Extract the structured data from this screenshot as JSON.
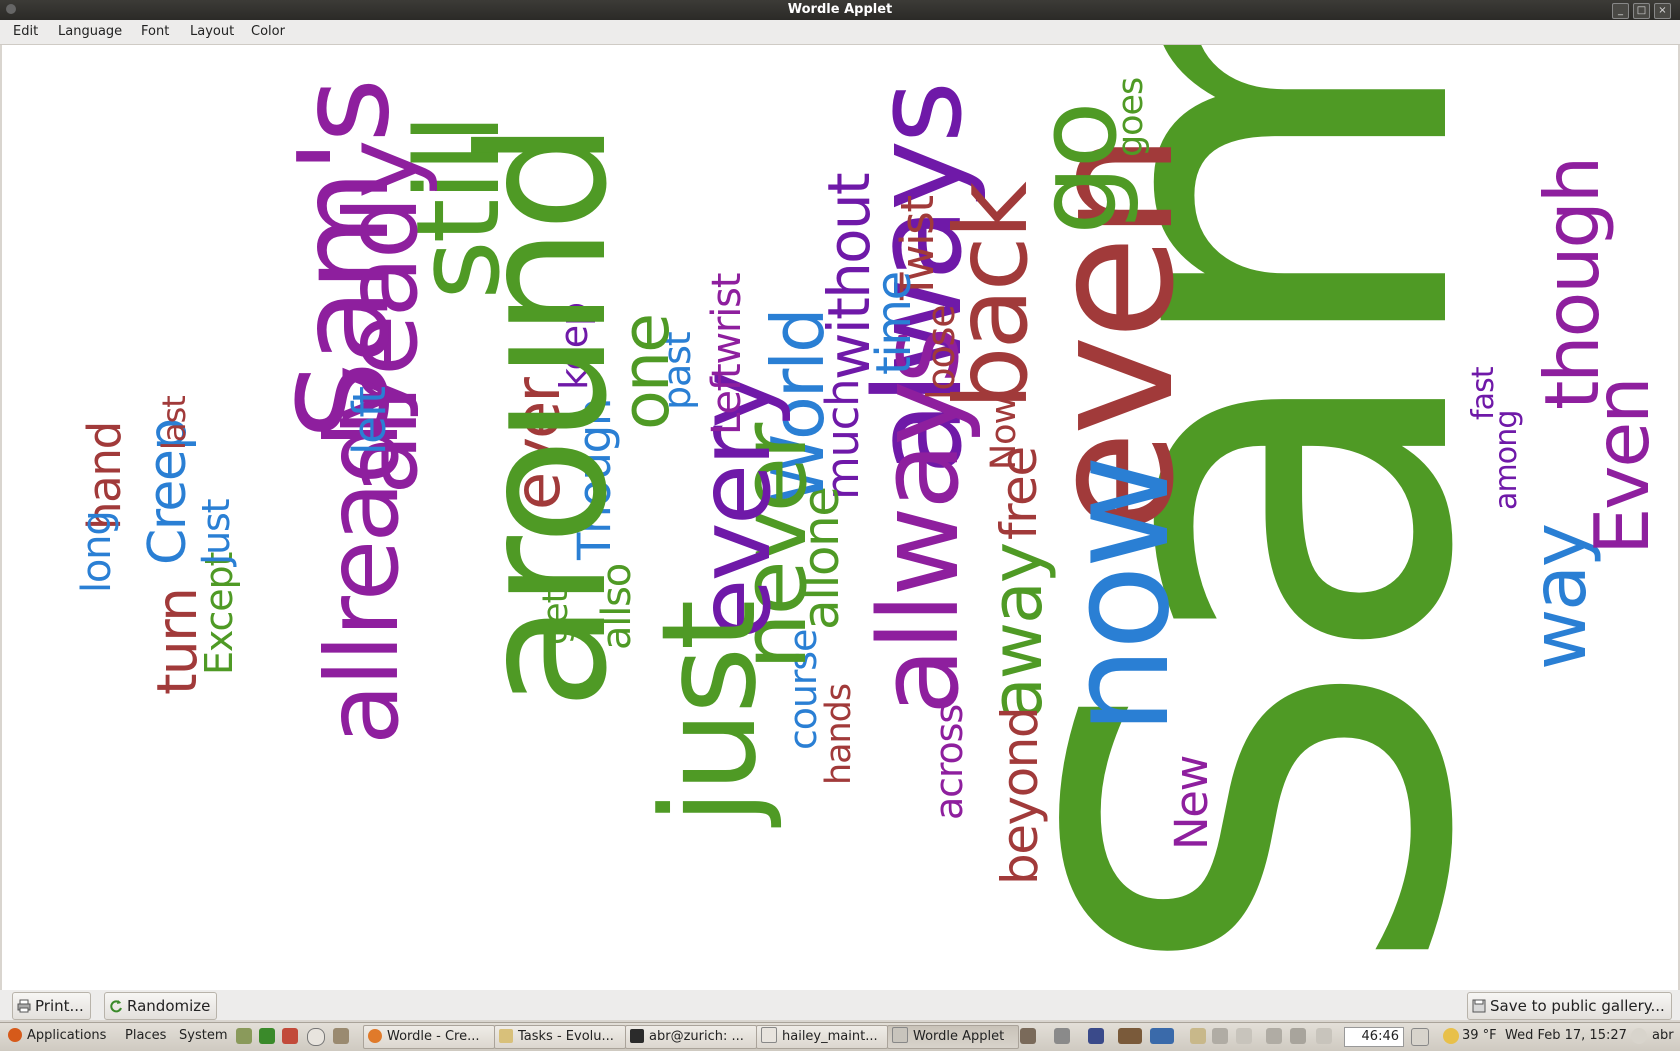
{
  "window": {
    "title": "Wordle Applet"
  },
  "menu": [
    "Edit",
    "Language",
    "Font",
    "Layout",
    "Color"
  ],
  "cloud": {
    "words": [
      "Sam",
      "even",
      "now",
      "always",
      "allways",
      "go",
      "back",
      "way",
      "though",
      "Even",
      "away",
      "free",
      "Now",
      "beyond",
      "New",
      "across",
      "among",
      "fast",
      "loose",
      "Twist",
      "time",
      "without",
      "much",
      "allone",
      "course",
      "hands",
      "World",
      "never",
      "every",
      "just",
      "past",
      "Leftwrist",
      "one",
      "keep",
      "ever",
      "Though",
      "allso",
      "get",
      "around",
      "still",
      "already",
      "allready",
      "Sam's",
      "left",
      "turn",
      "Except",
      "Just",
      "Creep",
      "last",
      "hand",
      "long",
      "goes"
    ]
  },
  "buttons": {
    "print": "Print...",
    "randomize": "Randomize",
    "save": "Save to public gallery..."
  },
  "taskbar": {
    "menus": [
      "Applications",
      "Places",
      "System"
    ],
    "tasks": [
      "Wordle - Cre...",
      "Tasks - Evolu...",
      "abr@zurich: ...",
      "hailey_maint...",
      "Wordle Applet"
    ],
    "timer": "46:46",
    "weather": "39 °F",
    "datetime": "Wed Feb 17, 15:27",
    "user": "abr"
  },
  "colors": {
    "green": "#4f9a25",
    "purple": "#8e1f9e",
    "blue": "#2a7fd4",
    "red": "#a13a3a",
    "violet": "#6f19a8"
  }
}
